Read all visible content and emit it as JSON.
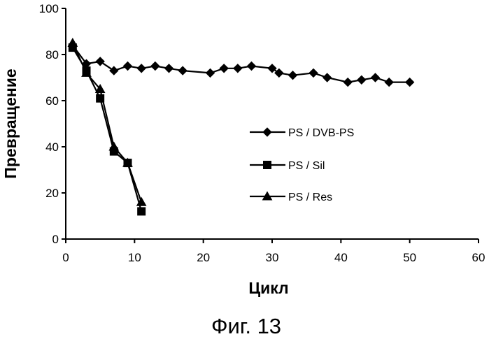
{
  "figure_caption": "Фиг. 13",
  "chart_data": {
    "type": "line",
    "title": "",
    "xlabel": "Цикл",
    "ylabel": "Превращение",
    "xlim": [
      0,
      60
    ],
    "ylim": [
      0,
      100
    ],
    "xticks": [
      "0",
      "10",
      "20",
      "30",
      "40",
      "50",
      "60"
    ],
    "yticks": [
      "0",
      "20",
      "40",
      "60",
      "80",
      "100"
    ],
    "grid": false,
    "legend_position": "right",
    "series": [
      {
        "name": "PS / DVB-PS",
        "marker": "diamond",
        "color": "#000000",
        "x": [
          1,
          3,
          5,
          7,
          9,
          11,
          13,
          15,
          17,
          21,
          23,
          25,
          27,
          30,
          31,
          33,
          36,
          38,
          41,
          43,
          45,
          47,
          50
        ],
        "y": [
          84,
          76,
          77,
          73,
          75,
          74,
          75,
          74,
          73,
          72,
          74,
          74,
          75,
          74,
          72,
          71,
          72,
          70,
          68,
          69,
          70,
          68,
          68
        ]
      },
      {
        "name": "PS / Sil",
        "marker": "square",
        "color": "#000000",
        "x": [
          1,
          3,
          5,
          7,
          9,
          11
        ],
        "y": [
          83,
          73,
          61,
          38,
          33,
          12
        ]
      },
      {
        "name": "PS / Res",
        "marker": "triangle",
        "color": "#000000",
        "x": [
          1,
          3,
          5,
          7,
          9,
          11
        ],
        "y": [
          85,
          72,
          65,
          40,
          33,
          16
        ]
      }
    ]
  }
}
